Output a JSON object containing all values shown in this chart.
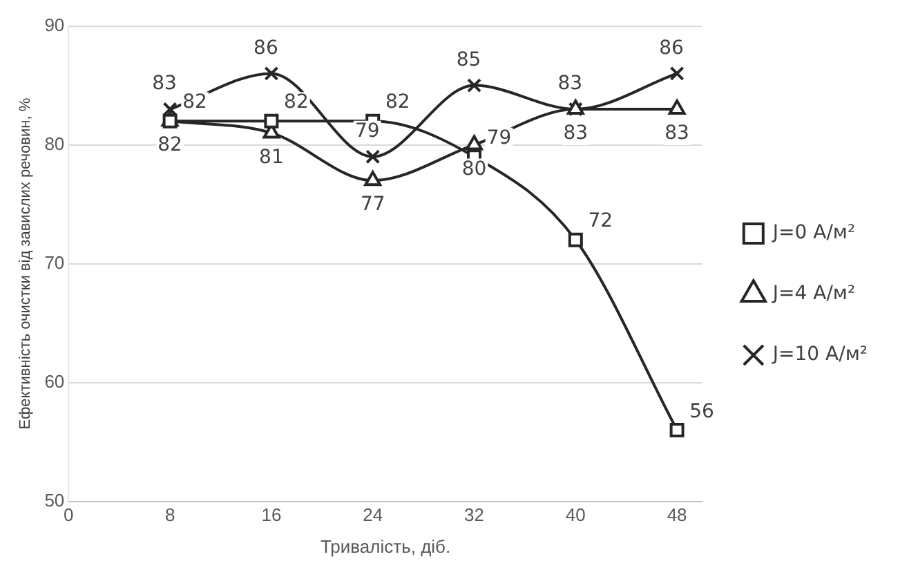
{
  "chart_data": {
    "type": "line",
    "xlabel": "Тривалість, діб.",
    "ylabel": "Ефективність очистки від завислих речовин, %",
    "x": [
      8,
      16,
      24,
      32,
      40,
      48
    ],
    "series": [
      {
        "name": "J=0 А/м²",
        "color": "#262626",
        "marker": "square",
        "values": [
          82,
          82,
          82,
          79,
          72,
          56
        ]
      },
      {
        "name": "J=4 А/м²",
        "color": "#262626",
        "marker": "triangle",
        "values": [
          82,
          81,
          77,
          80,
          83,
          83
        ]
      },
      {
        "name": "J=10 А/м²",
        "color": "#262626",
        "marker": "cross",
        "values": [
          83,
          86,
          79,
          85,
          83,
          86
        ]
      }
    ],
    "xlim": [
      0,
      50
    ],
    "xticks": [
      0,
      8,
      16,
      24,
      32,
      40,
      48
    ],
    "ylim": [
      50,
      90
    ],
    "yticks": [
      50,
      60,
      70,
      80,
      90
    ],
    "grid": "y",
    "legend": "right",
    "data_labels": true
  }
}
